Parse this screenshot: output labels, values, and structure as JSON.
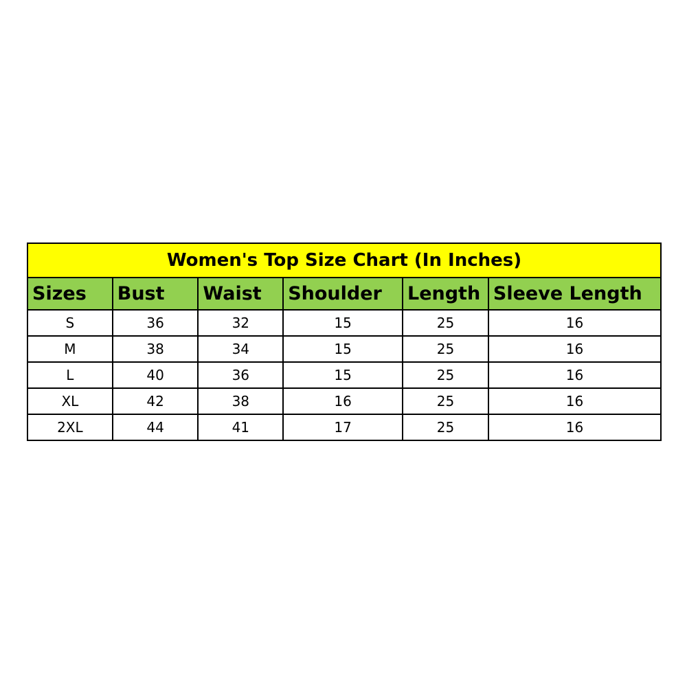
{
  "title": "Women's Top Size Chart (In Inches)",
  "colors": {
    "title_bg": "#ffff00",
    "header_bg": "#92d050"
  },
  "columns": [
    "Sizes",
    "Bust",
    "Waist",
    "Shoulder",
    "Length",
    "Sleeve Length"
  ],
  "rows": [
    [
      "S",
      "36",
      "32",
      "15",
      "25",
      "16"
    ],
    [
      "M",
      "38",
      "34",
      "15",
      "25",
      "16"
    ],
    [
      "L",
      "40",
      "36",
      "15",
      "25",
      "16"
    ],
    [
      "XL",
      "42",
      "38",
      "16",
      "25",
      "16"
    ],
    [
      "2XL",
      "44",
      "41",
      "17",
      "25",
      "16"
    ]
  ]
}
